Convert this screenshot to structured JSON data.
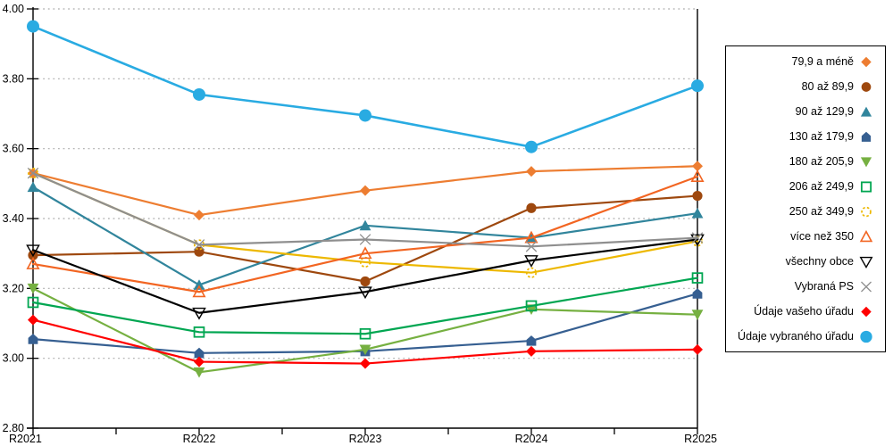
{
  "chart_data": {
    "type": "line",
    "x": [
      "R2021",
      "R2022",
      "R2023",
      "R2024",
      "R2025"
    ],
    "ylim": [
      2.8,
      4.0
    ],
    "ytick_labels": [
      "2.80",
      "3.00",
      "3.20",
      "3.40",
      "3.60",
      "3.80",
      "4.00"
    ],
    "grid": "horizontal-dotted",
    "legend_position": "right",
    "series": [
      {
        "name": "79,9 a méně",
        "marker": "diamond",
        "color": "#ED7D31",
        "values": [
          3.53,
          3.41,
          3.48,
          3.535,
          3.55
        ]
      },
      {
        "name": "80 až 89,9",
        "marker": "circle",
        "color": "#9E480E",
        "values": [
          3.295,
          3.305,
          3.22,
          3.43,
          3.465
        ]
      },
      {
        "name": "90 až 129,9",
        "marker": "triangle-up",
        "color": "#31859C",
        "values": [
          3.49,
          3.21,
          3.38,
          3.345,
          3.415
        ]
      },
      {
        "name": "130 až 179,9",
        "marker": "pentagon",
        "color": "#365F91",
        "values": [
          3.055,
          3.015,
          3.02,
          3.05,
          3.185
        ]
      },
      {
        "name": "180 až 205,9",
        "marker": "triangle-down",
        "color": "#76B041",
        "values": [
          3.2,
          2.96,
          3.025,
          3.14,
          3.125
        ]
      },
      {
        "name": "206 až 249,9",
        "marker": "square-open",
        "color": "#00A651",
        "values": [
          3.16,
          3.075,
          3.07,
          3.15,
          3.23
        ]
      },
      {
        "name": "250 až 349,9",
        "marker": "circle-open-dashed",
        "color": "#EDB800",
        "values": [
          3.53,
          3.325,
          3.275,
          3.245,
          3.335
        ]
      },
      {
        "name": "více než 350",
        "marker": "triangle-up-open",
        "color": "#F26522",
        "values": [
          3.27,
          3.19,
          3.3,
          3.345,
          3.52
        ]
      },
      {
        "name": "všechny obce",
        "marker": "triangle-down-open",
        "color": "#000000",
        "values": [
          3.31,
          3.13,
          3.19,
          3.28,
          3.34
        ]
      },
      {
        "name": "Vybraná PS",
        "marker": "x",
        "color": "#8F8F8F",
        "values": [
          3.53,
          3.325,
          3.34,
          3.32,
          3.345
        ]
      },
      {
        "name": "Údaje vašeho úřadu",
        "marker": "diamond",
        "color": "#FF0000",
        "values": [
          3.11,
          2.99,
          2.985,
          3.02,
          3.025
        ]
      },
      {
        "name": "Údaje vybraného úřadu",
        "marker": "circle-large",
        "color": "#29ABE2",
        "values": [
          3.95,
          3.755,
          3.695,
          3.605,
          3.78
        ]
      }
    ]
  },
  "colors": {
    "axis": "#000000",
    "gridline": "#ABABAB",
    "background": "#FFFFFF"
  }
}
